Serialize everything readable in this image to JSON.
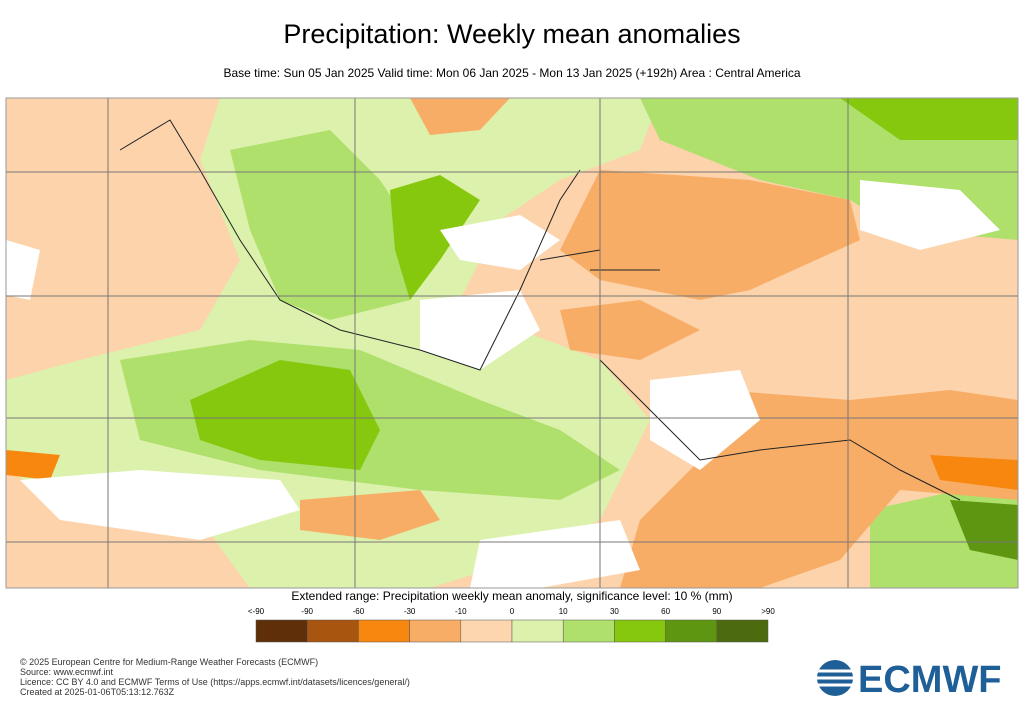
{
  "header": {
    "title": "Precipitation: Weekly mean anomalies",
    "subtitle": "Base time: Sun 05 Jan 2025 Valid time: Mon 06 Jan 2025 - Mon 13 Jan 2025 (+192h) Area : Central America"
  },
  "legend": {
    "title": "Extended range: Precipitation weekly mean anomaly, significance level: 10 % (mm)",
    "labels": [
      "<-90",
      "-90",
      "-60",
      "-30",
      "-10",
      "0",
      "10",
      "30",
      "60",
      "90",
      ">90"
    ],
    "colors": [
      "#5e2f08",
      "#a8550f",
      "#f7870f",
      "#f8ad67",
      "#fdd6b0",
      "#dcf1ac",
      "#aee06b",
      "#86c80e",
      "#5f9611",
      "#4c6b0f"
    ]
  },
  "footer": {
    "lines": [
      "© 2025 European Centre for Medium-Range Weather Forecasts (ECMWF)",
      "Source: www.ecmwf.int",
      "Licence: CC BY 4.0 and ECMWF Terms of Use (https://apps.ecmwf.int/datasets/licences/general/)",
      "Created at 2025-01-06T05:13:12.763Z"
    ],
    "logo": "ECMWF"
  }
}
